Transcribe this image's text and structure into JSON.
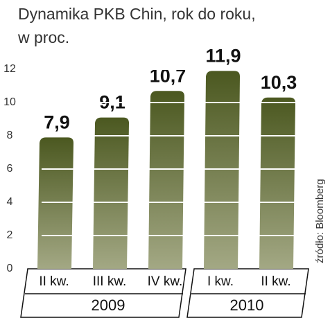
{
  "chart_data": {
    "type": "bar",
    "title": "Dynamika PKB Chin, rok do roku,",
    "subtitle": "w proc.",
    "categories": [
      "II kw.",
      "III kw.",
      "IV kw.",
      "I kw.",
      "II kw."
    ],
    "groups": [
      "2009",
      "2010"
    ],
    "values": [
      7.9,
      9.1,
      10.7,
      11.9,
      10.3
    ],
    "value_labels": [
      "7,9",
      "9,1",
      "10,7",
      "11,9",
      "10,3"
    ],
    "ylim": [
      0,
      12
    ],
    "yticks": [
      0,
      2,
      4,
      6,
      8,
      10,
      12
    ],
    "grid": true,
    "color": "#56632a",
    "source": "źródło: Bloomberg"
  }
}
